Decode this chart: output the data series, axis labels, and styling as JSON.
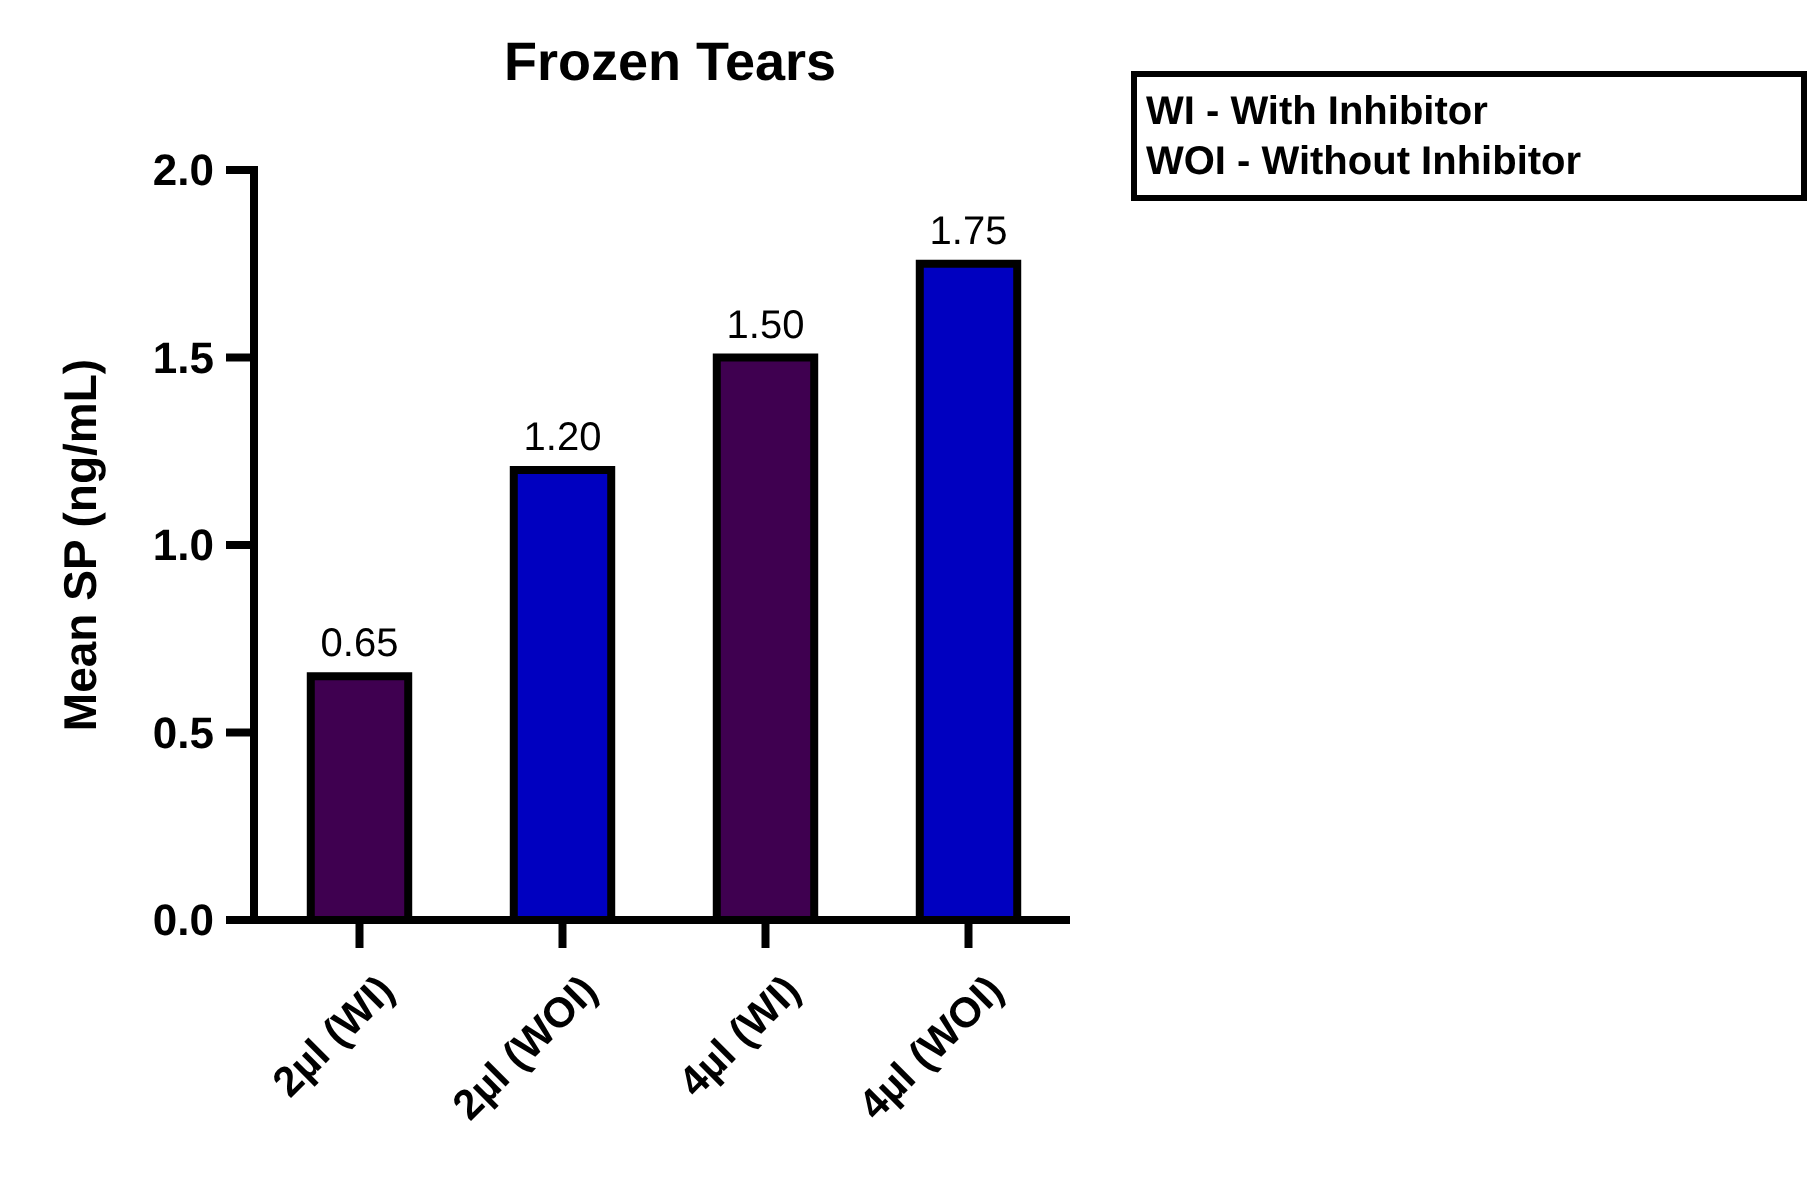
{
  "chart_data": {
    "type": "bar",
    "title": "Frozen Tears",
    "ylabel": "Mean SP (ng/mL)",
    "categories": [
      "2µl (WI)",
      "2µl (WOI)",
      "4µl (WI)",
      "4µl (WOI)"
    ],
    "values": [
      0.65,
      1.2,
      1.5,
      1.75
    ],
    "colors": [
      "#3f0050",
      "#0000c0",
      "#3f0050",
      "#0000c0"
    ],
    "value_labels": [
      "0.65",
      "1.20",
      "1.50",
      "1.75"
    ],
    "annotations": [
      "WI - With Inhibitor",
      "WOI - Without Inhibitor"
    ],
    "ylim": [
      0,
      2
    ],
    "yticks": [
      {
        "value": 0,
        "label": "0.0"
      },
      {
        "value": 0.5,
        "label": "0.5"
      },
      {
        "value": 1,
        "label": "1.0"
      },
      {
        "value": 1.5,
        "label": "1.5"
      },
      {
        "value": 2,
        "label": "2.0"
      }
    ],
    "grid": false
  }
}
